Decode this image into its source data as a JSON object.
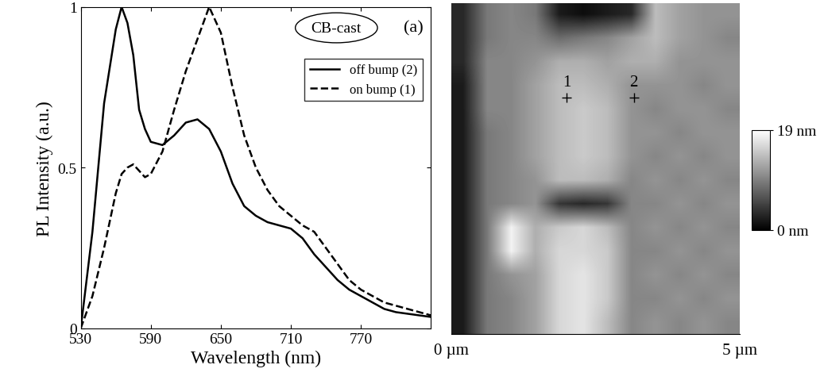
{
  "chart_data": [
    {
      "type": "line",
      "x_label": "Wavelength (nm)",
      "y_label": "PL Intensity (a.u.)",
      "annotations": [
        "CB-cast",
        "(a)"
      ],
      "x": [
        530,
        540,
        550,
        560,
        565,
        570,
        575,
        580,
        585,
        590,
        600,
        610,
        620,
        630,
        640,
        650,
        660,
        670,
        680,
        690,
        700,
        710,
        720,
        730,
        740,
        750,
        760,
        770,
        780,
        790,
        800,
        810,
        820,
        830
      ],
      "series": [
        {
          "name": "off bump (2)",
          "color": "#000000",
          "line_style": "solid",
          "values": [
            0,
            0.3,
            0.7,
            0.93,
            1.0,
            0.95,
            0.85,
            0.68,
            0.62,
            0.58,
            0.57,
            0.6,
            0.64,
            0.65,
            0.62,
            0.55,
            0.45,
            0.38,
            0.35,
            0.33,
            0.32,
            0.31,
            0.28,
            0.23,
            0.19,
            0.15,
            0.12,
            0.1,
            0.08,
            0.06,
            0.05,
            0.045,
            0.04,
            0.035
          ]
        },
        {
          "name": "on bump (1)",
          "color": "#000000",
          "line_style": "dashed",
          "values": [
            0,
            0.1,
            0.25,
            0.42,
            0.48,
            0.5,
            0.51,
            0.49,
            0.47,
            0.48,
            0.55,
            0.68,
            0.8,
            0.9,
            1.0,
            0.92,
            0.75,
            0.6,
            0.5,
            0.43,
            0.38,
            0.35,
            0.32,
            0.3,
            0.25,
            0.2,
            0.15,
            0.12,
            0.1,
            0.08,
            0.07,
            0.06,
            0.05,
            0.04
          ]
        }
      ],
      "xlim": [
        530,
        830
      ],
      "xticks": [
        530,
        590,
        650,
        710,
        770
      ],
      "ylim": [
        0,
        1
      ],
      "yticks": [
        0,
        0.5,
        1
      ],
      "legend": "upper right"
    },
    {
      "type": "heatmap",
      "xlim": [
        0,
        5
      ],
      "xticks": [
        {
          "value": 0,
          "label": "0 µm"
        },
        {
          "value": 5,
          "label": "5 µm"
        }
      ],
      "tick_labels": "x",
      "color": "gray",
      "cells": [
        [
          3,
          9,
          10,
          9,
          2,
          1,
          2,
          3,
          14,
          12,
          11,
          11
        ],
        [
          3,
          9,
          10,
          10,
          8,
          9,
          10,
          12,
          14,
          12,
          11,
          10
        ],
        [
          3,
          10,
          10,
          11,
          13,
          13,
          12,
          13,
          13,
          11,
          11,
          11
        ],
        [
          2,
          10,
          10,
          12,
          14,
          14,
          13,
          11,
          11,
          11,
          10,
          11
        ],
        [
          2,
          10,
          10,
          12,
          14,
          15,
          14,
          11,
          10,
          11,
          11,
          10
        ],
        [
          2,
          9,
          10,
          12,
          14,
          15,
          14,
          11,
          11,
          10,
          11,
          11
        ],
        [
          2,
          9,
          10,
          12,
          14,
          15,
          14,
          11,
          10,
          11,
          10,
          11
        ],
        [
          2,
          9,
          10,
          11,
          14,
          14,
          13,
          10,
          11,
          10,
          11,
          10
        ],
        [
          2,
          9,
          10,
          11,
          4,
          3,
          4,
          10,
          10,
          11,
          10,
          11
        ],
        [
          2,
          9,
          18,
          13,
          15,
          16,
          14,
          10,
          11,
          10,
          11,
          10
        ],
        [
          2,
          9,
          18,
          13,
          16,
          16,
          15,
          10,
          10,
          11,
          10,
          11
        ],
        [
          2,
          9,
          11,
          12,
          16,
          17,
          15,
          10,
          11,
          10,
          11,
          10
        ],
        [
          2,
          9,
          10,
          12,
          16,
          17,
          15,
          10,
          10,
          11,
          10,
          11
        ],
        [
          2,
          9,
          10,
          12,
          16,
          17,
          14,
          10,
          11,
          10,
          11,
          10
        ]
      ],
      "colorbar": {
        "range": [
          0,
          19
        ],
        "ticks": [
          {
            "value": 0,
            "label": "0 nm"
          },
          {
            "value": 19,
            "label": "19 nm"
          }
        ]
      },
      "annotations": [
        {
          "text": "1",
          "x": 2.0,
          "y": 4.0,
          "marker": "+"
        },
        {
          "text": "2",
          "x": 3.16,
          "y": 4.0,
          "marker": "+"
        }
      ]
    }
  ]
}
